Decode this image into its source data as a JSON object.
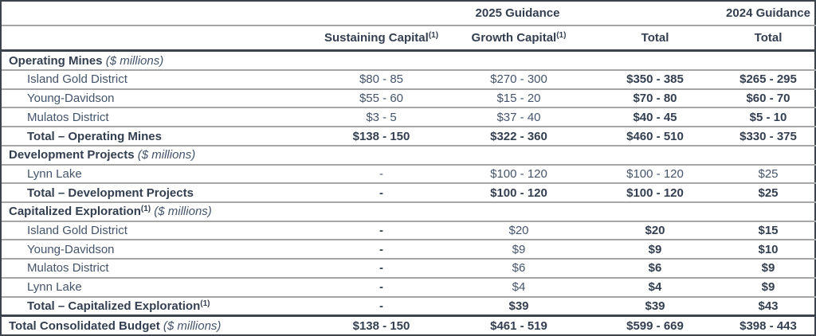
{
  "table": {
    "guidance_2025": "2025 Guidance",
    "guidance_2024": "2024 Guidance",
    "columns": [
      {
        "label": "Sustaining Capital",
        "sup": "(1)"
      },
      {
        "label": "Growth Capital",
        "sup": "(1)"
      },
      {
        "label": "Total",
        "sup": ""
      },
      {
        "label": "Total",
        "sup": ""
      }
    ],
    "rows": [
      {
        "type": "section",
        "label": "Operating Mines",
        "sup": "",
        "unit": "($ millions)",
        "label_bold": true,
        "indent": false,
        "thick_top": true,
        "values": [
          "",
          "",
          "",
          ""
        ],
        "value_bold": [
          false,
          false,
          false,
          false
        ]
      },
      {
        "type": "item",
        "label": "Island Gold District",
        "sup": "",
        "unit": "",
        "label_bold": false,
        "indent": true,
        "thick_top": false,
        "values": [
          "$80 - 85",
          "$270 - 300",
          "$350 - 385",
          "$265 - 295"
        ],
        "value_bold": [
          false,
          false,
          true,
          true
        ]
      },
      {
        "type": "item",
        "label": "Young-Davidson",
        "sup": "",
        "unit": "",
        "label_bold": false,
        "indent": true,
        "thick_top": false,
        "values": [
          "$55 - 60",
          "$15 - 20",
          "$70 - 80",
          "$60 - 70"
        ],
        "value_bold": [
          false,
          false,
          true,
          true
        ]
      },
      {
        "type": "item",
        "label": "Mulatos District",
        "sup": "",
        "unit": "",
        "label_bold": false,
        "indent": true,
        "thick_top": false,
        "values": [
          "$3 - 5",
          "$37 - 40",
          "$40 - 45",
          "$5 - 10"
        ],
        "value_bold": [
          false,
          false,
          true,
          true
        ]
      },
      {
        "type": "total",
        "label": "Total – Operating Mines",
        "sup": "",
        "unit": "",
        "label_bold": true,
        "indent": true,
        "thick_top": false,
        "values": [
          "$138 - 150",
          "$322 - 360",
          "$460 - 510",
          "$330 - 375"
        ],
        "value_bold": [
          true,
          true,
          true,
          true
        ]
      },
      {
        "type": "section",
        "label": "Development Projects",
        "sup": "",
        "unit": "($ millions)",
        "label_bold": true,
        "indent": false,
        "thick_top": false,
        "values": [
          "",
          "",
          "",
          ""
        ],
        "value_bold": [
          false,
          false,
          false,
          false
        ]
      },
      {
        "type": "item",
        "label": "Lynn Lake",
        "sup": "",
        "unit": "",
        "label_bold": false,
        "indent": true,
        "thick_top": false,
        "values": [
          "-",
          "$100 - 120",
          "$100 - 120",
          "$25"
        ],
        "value_bold": [
          false,
          false,
          false,
          false
        ]
      },
      {
        "type": "total",
        "label": "Total – Development Projects",
        "sup": "",
        "unit": "",
        "label_bold": true,
        "indent": true,
        "thick_top": false,
        "values": [
          "-",
          "$100 - 120",
          "$100 - 120",
          "$25"
        ],
        "value_bold": [
          true,
          true,
          true,
          true
        ]
      },
      {
        "type": "section",
        "label": "Capitalized Exploration",
        "sup": "(1)",
        "unit": "($ millions)",
        "label_bold": true,
        "indent": false,
        "thick_top": false,
        "values": [
          "",
          "",
          "",
          ""
        ],
        "value_bold": [
          false,
          false,
          false,
          false
        ]
      },
      {
        "type": "item",
        "label": "Island Gold District",
        "sup": "",
        "unit": "",
        "label_bold": false,
        "indent": true,
        "thick_top": false,
        "values": [
          "-",
          "$20",
          "$20",
          "$15"
        ],
        "value_bold": [
          true,
          false,
          true,
          true
        ]
      },
      {
        "type": "item",
        "label": "Young-Davidson",
        "sup": "",
        "unit": "",
        "label_bold": false,
        "indent": true,
        "thick_top": false,
        "values": [
          "-",
          "$9",
          "$9",
          "$10"
        ],
        "value_bold": [
          true,
          false,
          true,
          true
        ]
      },
      {
        "type": "item",
        "label": "Mulatos District",
        "sup": "",
        "unit": "",
        "label_bold": false,
        "indent": true,
        "thick_top": false,
        "values": [
          "-",
          "$6",
          "$6",
          "$9"
        ],
        "value_bold": [
          true,
          false,
          true,
          true
        ]
      },
      {
        "type": "item",
        "label": "Lynn Lake",
        "sup": "",
        "unit": "",
        "label_bold": false,
        "indent": true,
        "thick_top": false,
        "values": [
          "-",
          "$4",
          "$4",
          "$9"
        ],
        "value_bold": [
          true,
          false,
          true,
          true
        ]
      },
      {
        "type": "total",
        "label": "Total – Capitalized Exploration",
        "sup": "(1)",
        "unit": "",
        "label_bold": true,
        "indent": true,
        "thick_top": false,
        "values": [
          "-",
          "$39",
          "$39",
          "$43"
        ],
        "value_bold": [
          true,
          true,
          true,
          true
        ]
      },
      {
        "type": "grand-total",
        "label": "Total Consolidated Budget",
        "sup": "",
        "unit": "($ millions)",
        "label_bold": true,
        "indent": false,
        "thick_top": true,
        "values": [
          "$138 - 150",
          "$461 - 519",
          "$599 - 669",
          "$398 - 443"
        ],
        "value_bold": [
          true,
          true,
          true,
          true
        ]
      }
    ]
  }
}
